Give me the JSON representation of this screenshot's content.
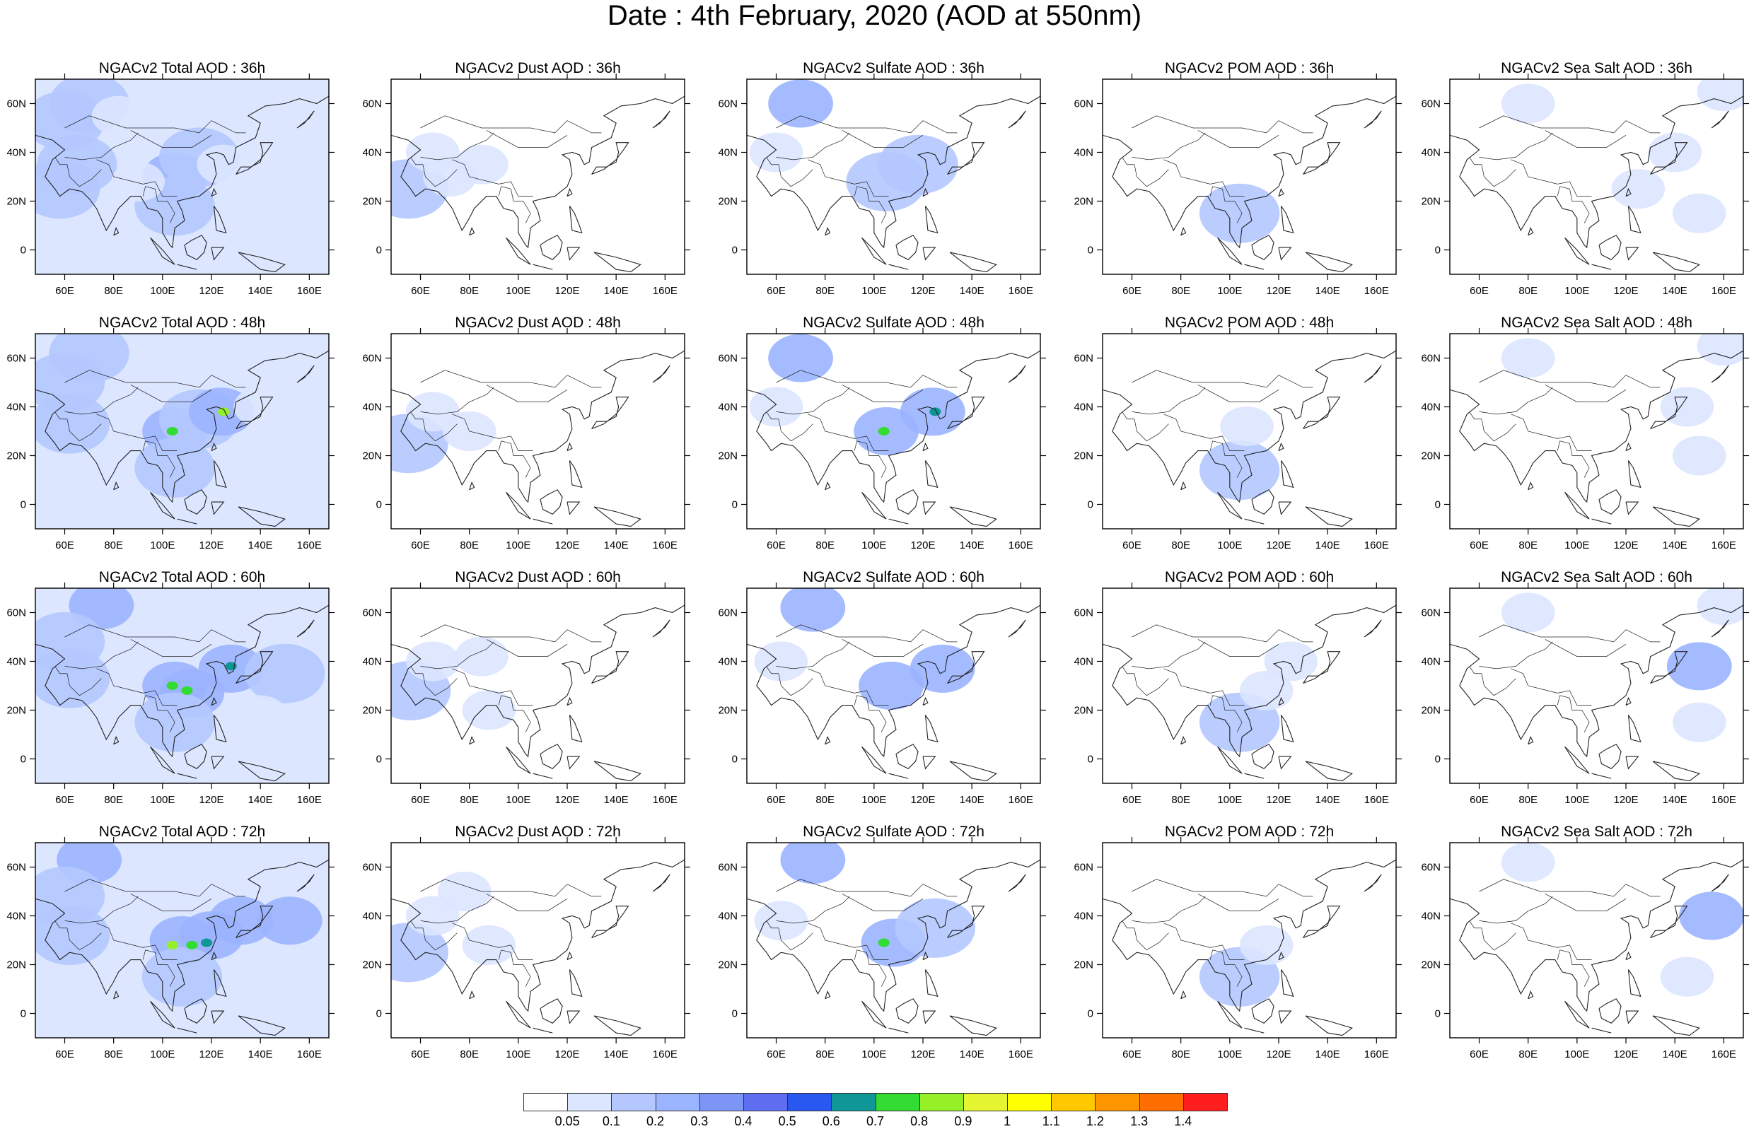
{
  "title": "Date : 4th February, 2020 (AOD at 550nm)",
  "map_axes": {
    "lon_ticks": [
      "60E",
      "80E",
      "100E",
      "120E",
      "140E",
      "160E"
    ],
    "lon_values": [
      60,
      80,
      100,
      120,
      140,
      160
    ],
    "lat_ticks": [
      "60N",
      "40N",
      "20N",
      "0"
    ],
    "lat_values": [
      60,
      40,
      20,
      0
    ],
    "lon_range": [
      48,
      168
    ],
    "lat_range": [
      -10,
      70
    ]
  },
  "panels": [
    {
      "title": "NGACv2 Total AOD : 36h",
      "species": "total",
      "hour": 36
    },
    {
      "title": "NGACv2 Dust AOD : 36h",
      "species": "dust",
      "hour": 36
    },
    {
      "title": "NGACv2 Sulfate AOD : 36h",
      "species": "sulfate",
      "hour": 36
    },
    {
      "title": "NGACv2 POM AOD : 36h",
      "species": "pom",
      "hour": 36
    },
    {
      "title": "NGACv2 Sea Salt AOD : 36h",
      "species": "seasalt",
      "hour": 36
    },
    {
      "title": "NGACv2 Total AOD : 48h",
      "species": "total",
      "hour": 48
    },
    {
      "title": "NGACv2 Dust AOD : 48h",
      "species": "dust",
      "hour": 48
    },
    {
      "title": "NGACv2 Sulfate AOD : 48h",
      "species": "sulfate",
      "hour": 48
    },
    {
      "title": "NGACv2 POM AOD : 48h",
      "species": "pom",
      "hour": 48
    },
    {
      "title": "NGACv2 Sea Salt AOD : 48h",
      "species": "seasalt",
      "hour": 48
    },
    {
      "title": "NGACv2 Total AOD : 60h",
      "species": "total",
      "hour": 60
    },
    {
      "title": "NGACv2 Dust AOD : 60h",
      "species": "dust",
      "hour": 60
    },
    {
      "title": "NGACv2 Sulfate AOD : 60h",
      "species": "sulfate",
      "hour": 60
    },
    {
      "title": "NGACv2 POM AOD : 60h",
      "species": "pom",
      "hour": 60
    },
    {
      "title": "NGACv2 Sea Salt AOD : 60h",
      "species": "seasalt",
      "hour": 60
    },
    {
      "title": "NGACv2 Total AOD : 72h",
      "species": "total",
      "hour": 72
    },
    {
      "title": "NGACv2 Dust AOD : 72h",
      "species": "dust",
      "hour": 72
    },
    {
      "title": "NGACv2 Sulfate AOD : 72h",
      "species": "sulfate",
      "hour": 72
    },
    {
      "title": "NGACv2 POM AOD : 72h",
      "species": "pom",
      "hour": 72
    },
    {
      "title": "NGACv2 Sea Salt  AOD : 72h",
      "species": "seasalt",
      "hour": 72
    }
  ],
  "colorbar": {
    "labels": [
      "0.05",
      "0.1",
      "0.2",
      "0.3",
      "0.4",
      "0.5",
      "0.6",
      "0.7",
      "0.8",
      "0.9",
      "1",
      "1.1",
      "1.2",
      "1.3",
      "1.4"
    ],
    "colors": [
      "#ffffff",
      "#dce6ff",
      "#b4c8ff",
      "#9bb4ff",
      "#7d96f5",
      "#5f6ef0",
      "#2858f0",
      "#0f9696",
      "#32dc32",
      "#96f028",
      "#e6f532",
      "#ffff00",
      "#ffc800",
      "#ff9600",
      "#ff6e00",
      "#ff1e1e"
    ]
  },
  "features": {
    "total": {
      "36": [
        {
          "lon": 70,
          "lat": 60,
          "r": 2
        },
        {
          "lon": 60,
          "lat": 53,
          "r": 2
        },
        {
          "lon": 82,
          "lat": 55,
          "r": 1
        },
        {
          "lon": 65,
          "lat": 35,
          "r": 2
        },
        {
          "lon": 58,
          "lat": 25,
          "r": 2
        },
        {
          "lon": 105,
          "lat": 30,
          "r": 3
        },
        {
          "lon": 115,
          "lat": 38,
          "r": 2
        },
        {
          "lon": 105,
          "lat": 18,
          "r": 2
        },
        {
          "lon": 90,
          "lat": 28,
          "r": 1
        },
        {
          "lon": 125,
          "lat": 35,
          "r": 1
        },
        {
          "lon": 150,
          "lat": 45,
          "r": 1
        },
        {
          "lon": 140,
          "lat": 20,
          "r": 1
        }
      ],
      "48": [
        {
          "lon": 70,
          "lat": 62,
          "r": 2
        },
        {
          "lon": 60,
          "lat": 50,
          "r": 2
        },
        {
          "lon": 62,
          "lat": 33,
          "r": 2
        },
        {
          "lon": 105,
          "lat": 30,
          "r": 3
        },
        {
          "lon": 115,
          "lat": 35,
          "r": 2
        },
        {
          "lon": 124,
          "lat": 38,
          "r": 3
        },
        {
          "lon": 105,
          "lat": 15,
          "r": 2
        },
        {
          "lon": 140,
          "lat": 40,
          "r": 1
        },
        {
          "lon": 135,
          "lat": 15,
          "r": 1
        },
        {
          "lon": 104,
          "lat": 30,
          "r": 8
        },
        {
          "lon": 125,
          "lat": 38,
          "r": 9
        }
      ],
      "60": [
        {
          "lon": 75,
          "lat": 63,
          "r": 3
        },
        {
          "lon": 60,
          "lat": 48,
          "r": 2
        },
        {
          "lon": 62,
          "lat": 33,
          "r": 2
        },
        {
          "lon": 105,
          "lat": 30,
          "r": 3
        },
        {
          "lon": 112,
          "lat": 27,
          "r": 3
        },
        {
          "lon": 128,
          "lat": 37,
          "r": 3
        },
        {
          "lon": 105,
          "lat": 15,
          "r": 2
        },
        {
          "lon": 150,
          "lat": 35,
          "r": 2
        },
        {
          "lon": 140,
          "lat": 18,
          "r": 1
        },
        {
          "lon": 104,
          "lat": 30,
          "r": 8
        },
        {
          "lon": 110,
          "lat": 28,
          "r": 8
        },
        {
          "lon": 128,
          "lat": 38,
          "r": 7
        }
      ],
      "72": [
        {
          "lon": 70,
          "lat": 63,
          "r": 3
        },
        {
          "lon": 60,
          "lat": 48,
          "r": 2
        },
        {
          "lon": 62,
          "lat": 32,
          "r": 2
        },
        {
          "lon": 108,
          "lat": 30,
          "r": 3
        },
        {
          "lon": 120,
          "lat": 32,
          "r": 3
        },
        {
          "lon": 132,
          "lat": 38,
          "r": 3
        },
        {
          "lon": 152,
          "lat": 38,
          "r": 3
        },
        {
          "lon": 108,
          "lat": 15,
          "r": 2
        },
        {
          "lon": 140,
          "lat": 20,
          "r": 1
        },
        {
          "lon": 104,
          "lat": 28,
          "r": 9
        },
        {
          "lon": 112,
          "lat": 28,
          "r": 8
        },
        {
          "lon": 118,
          "lat": 29,
          "r": 7
        }
      ]
    },
    "dust": {
      "36": [
        {
          "lon": 55,
          "lat": 25,
          "r": 2
        },
        {
          "lon": 65,
          "lat": 40,
          "r": 1
        },
        {
          "lon": 72,
          "lat": 30,
          "r": 1
        },
        {
          "lon": 85,
          "lat": 35,
          "r": 1
        }
      ],
      "48": [
        {
          "lon": 55,
          "lat": 25,
          "r": 2
        },
        {
          "lon": 65,
          "lat": 38,
          "r": 1
        },
        {
          "lon": 80,
          "lat": 30,
          "r": 1
        }
      ],
      "60": [
        {
          "lon": 56,
          "lat": 28,
          "r": 2
        },
        {
          "lon": 65,
          "lat": 40,
          "r": 1
        },
        {
          "lon": 85,
          "lat": 42,
          "r": 1
        },
        {
          "lon": 88,
          "lat": 20,
          "r": 1
        }
      ],
      "72": [
        {
          "lon": 55,
          "lat": 25,
          "r": 2
        },
        {
          "lon": 65,
          "lat": 40,
          "r": 1
        },
        {
          "lon": 78,
          "lat": 50,
          "r": 1
        },
        {
          "lon": 88,
          "lat": 28,
          "r": 1
        }
      ]
    },
    "sulfate": {
      "36": [
        {
          "lon": 70,
          "lat": 60,
          "r": 3
        },
        {
          "lon": 105,
          "lat": 28,
          "r": 2
        },
        {
          "lon": 118,
          "lat": 35,
          "r": 2
        },
        {
          "lon": 60,
          "lat": 40,
          "r": 1
        }
      ],
      "48": [
        {
          "lon": 70,
          "lat": 60,
          "r": 3
        },
        {
          "lon": 105,
          "lat": 30,
          "r": 3
        },
        {
          "lon": 124,
          "lat": 38,
          "r": 3
        },
        {
          "lon": 60,
          "lat": 40,
          "r": 1
        },
        {
          "lon": 104,
          "lat": 30,
          "r": 8
        },
        {
          "lon": 125,
          "lat": 38,
          "r": 7
        }
      ],
      "60": [
        {
          "lon": 75,
          "lat": 62,
          "r": 3
        },
        {
          "lon": 107,
          "lat": 30,
          "r": 3
        },
        {
          "lon": 128,
          "lat": 37,
          "r": 3
        },
        {
          "lon": 62,
          "lat": 40,
          "r": 1
        }
      ],
      "72": [
        {
          "lon": 75,
          "lat": 63,
          "r": 3
        },
        {
          "lon": 108,
          "lat": 29,
          "r": 3
        },
        {
          "lon": 125,
          "lat": 35,
          "r": 2
        },
        {
          "lon": 62,
          "lat": 38,
          "r": 1
        },
        {
          "lon": 104,
          "lat": 29,
          "r": 8
        }
      ]
    },
    "pom": {
      "36": [
        {
          "lon": 104,
          "lat": 15,
          "r": 2
        }
      ],
      "48": [
        {
          "lon": 104,
          "lat": 14,
          "r": 2
        },
        {
          "lon": 107,
          "lat": 32,
          "r": 1
        }
      ],
      "60": [
        {
          "lon": 104,
          "lat": 15,
          "r": 2
        },
        {
          "lon": 115,
          "lat": 28,
          "r": 1
        },
        {
          "lon": 125,
          "lat": 40,
          "r": 1
        }
      ],
      "72": [
        {
          "lon": 104,
          "lat": 15,
          "r": 2
        },
        {
          "lon": 115,
          "lat": 28,
          "r": 1
        }
      ]
    },
    "seasalt": {
      "36": [
        {
          "lon": 160,
          "lat": 65,
          "r": 1
        },
        {
          "lon": 150,
          "lat": 15,
          "r": 1
        },
        {
          "lon": 125,
          "lat": 25,
          "r": 1
        },
        {
          "lon": 80,
          "lat": 60,
          "r": 1
        },
        {
          "lon": 140,
          "lat": 40,
          "r": 1
        }
      ],
      "48": [
        {
          "lon": 160,
          "lat": 65,
          "r": 1
        },
        {
          "lon": 150,
          "lat": 20,
          "r": 1
        },
        {
          "lon": 145,
          "lat": 40,
          "r": 1
        },
        {
          "lon": 80,
          "lat": 60,
          "r": 1
        }
      ],
      "60": [
        {
          "lon": 150,
          "lat": 38,
          "r": 3
        },
        {
          "lon": 150,
          "lat": 15,
          "r": 1
        },
        {
          "lon": 80,
          "lat": 60,
          "r": 1
        },
        {
          "lon": 160,
          "lat": 63,
          "r": 1
        }
      ],
      "72": [
        {
          "lon": 155,
          "lat": 40,
          "r": 3
        },
        {
          "lon": 145,
          "lat": 15,
          "r": 1
        },
        {
          "lon": 80,
          "lat": 62,
          "r": 1
        }
      ]
    }
  }
}
